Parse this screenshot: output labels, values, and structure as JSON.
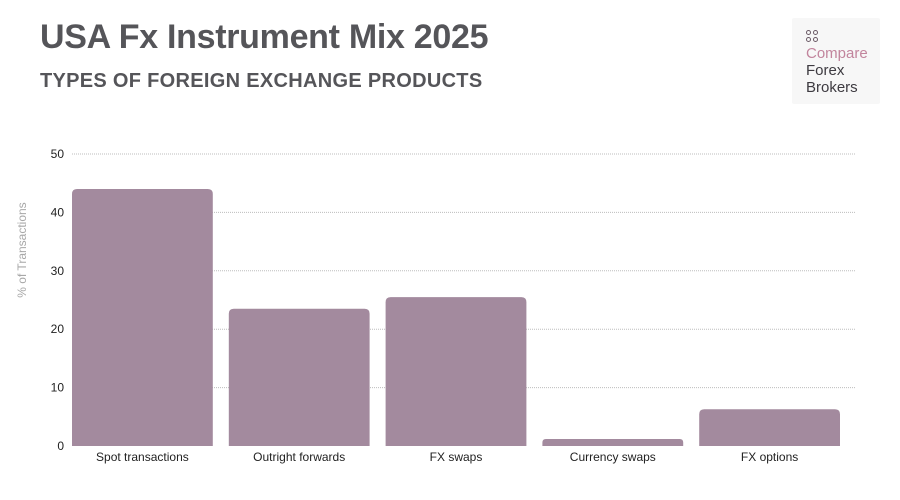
{
  "header": {
    "title": "USA Fx Instrument Mix 2025",
    "subtitle": "TYPES OF FOREIGN EXCHANGE PRODUCTS"
  },
  "logo": {
    "line1": "Compare",
    "line2": "Forex",
    "line3": "Brokers"
  },
  "colors": {
    "bar": "#a38a9e",
    "grid": "#bdbdbd",
    "text": "#555559",
    "axis_text": "#222222"
  },
  "chart_data": {
    "type": "bar",
    "title": "USA Fx Instrument Mix 2025",
    "subtitle": "TYPES OF FOREIGN EXCHANGE PRODUCTS",
    "xlabel": "",
    "ylabel": "% of Transactions",
    "categories": [
      "Spot transactions",
      "Outright forwards",
      "FX swaps",
      "Currency swaps",
      "FX options"
    ],
    "values": [
      44,
      23.5,
      25.5,
      1.2,
      6.3
    ],
    "ylim": [
      0,
      50
    ],
    "yticks": [
      0,
      10,
      20,
      30,
      40,
      50
    ],
    "grid": true,
    "legend": "none"
  }
}
